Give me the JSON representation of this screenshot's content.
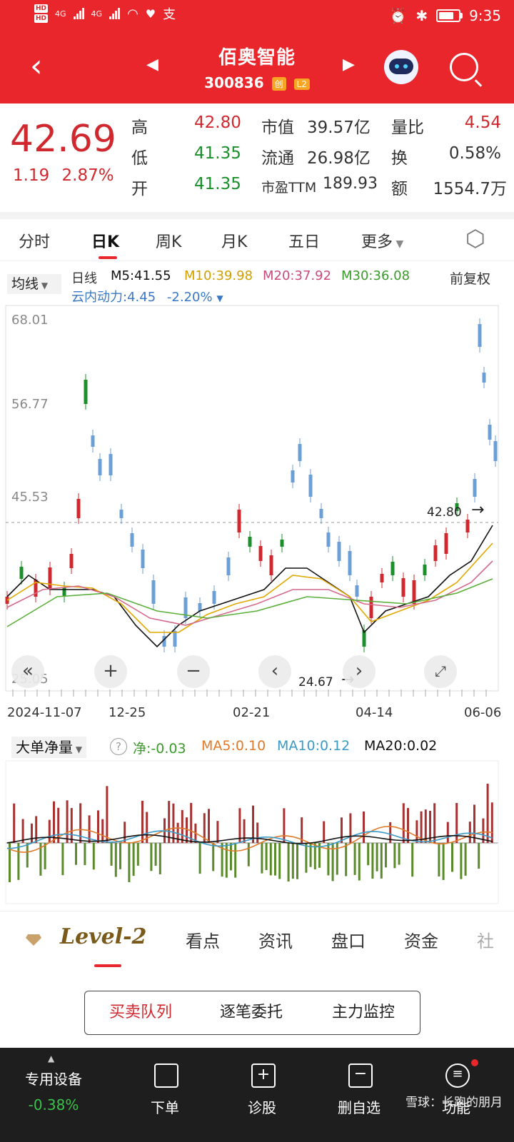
{
  "status_bar": {
    "time": "9:35",
    "network_1": "4G",
    "network_2": "4G",
    "hd_1": "HD",
    "hd_2": "HD",
    "alipay_glyph": "支"
  },
  "header": {
    "stock_name": "佰奥智能",
    "stock_code": "300836",
    "tag_board": "创",
    "tag_level": "L2"
  },
  "quote": {
    "price": "42.69",
    "change": "1.19",
    "change_pct": "2.87%",
    "high_label": "高",
    "high": "42.80",
    "low_label": "低",
    "low": "41.35",
    "open_label": "开",
    "open": "41.35",
    "mktcap_label": "市值",
    "mktcap": "39.57亿",
    "float_label": "流通",
    "float": "26.98亿",
    "pe_label": "市盈TTM",
    "pe": "189.93",
    "vol_ratio_label": "量比",
    "vol_ratio": "4.54",
    "turnover_label": "换",
    "turnover": "0.58%",
    "amount_label": "额",
    "amount": "1554.7万"
  },
  "tabs": {
    "items": [
      "分时",
      "日K",
      "周K",
      "月K",
      "五日",
      "更多"
    ],
    "active": "日K",
    "settings_icon": "hexagon-settings-icon"
  },
  "indicators": {
    "ma_select": "均线",
    "period": "日线",
    "m5": "M5:41.55",
    "m10": "M10:39.98",
    "m20": "M20:37.92",
    "m30": "M30:36.08",
    "adjust": "前复权",
    "cloud": "云内动力:4.45",
    "cloud_pct": "-2.20%"
  },
  "chart_data": {
    "type": "candlestick",
    "y_ticks": [
      "68.01",
      "56.77",
      "45.53",
      "25.05"
    ],
    "x_ticks": [
      "2024-11-07",
      "12-25",
      "02-21",
      "04-14",
      "06-06"
    ],
    "high_marker": "42.80",
    "low_marker": "24.67",
    "ylim": [
      25.05,
      68.01
    ],
    "colors": {
      "up": "#d0282e",
      "down": "#1a8f2a",
      "ma5": "#111111",
      "ma10": "#e0a800",
      "ma20": "#d46a8a",
      "ma30": "#5aae3a"
    }
  },
  "volume_panel": {
    "select": "大单净量",
    "net": "净:-0.03",
    "ma5": "MA5:0.10",
    "ma10": "MA10:0.12",
    "ma20": "MA20:0.02"
  },
  "info_tabs": {
    "level2": "Level-2",
    "items": [
      "看点",
      "资讯",
      "盘口",
      "资金",
      "社"
    ]
  },
  "sub_tabs": [
    "买卖队列",
    "逐笔委托",
    "主力监控"
  ],
  "bottom_nav": {
    "device_label": "专用设备",
    "device_pct": "-0.38%",
    "order": "下单",
    "diagnose": "诊股",
    "delete_watch": "删自选",
    "functions": "功能"
  },
  "watermark": "雪球：长跑的朋月"
}
